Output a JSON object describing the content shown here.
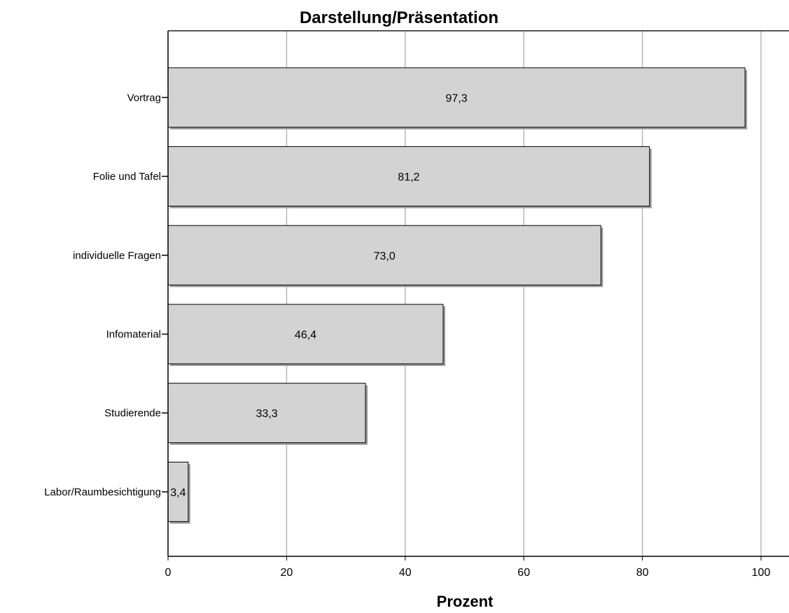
{
  "colors": {
    "bar_fill": "#d3d3d3",
    "bar_stroke": "#000000",
    "grid": "#b8b8b8",
    "axis": "#000000",
    "text": "#000000"
  },
  "chart_data": {
    "type": "bar",
    "orientation": "horizontal",
    "title": "Darstellung/Präsentation",
    "xlabel": "Prozent",
    "ylabel": "",
    "xlim": [
      0,
      100
    ],
    "x_ticks": [
      0,
      20,
      40,
      60,
      80,
      100
    ],
    "categories": [
      "Vortrag",
      "Folie und Tafel",
      "individuelle Fragen",
      "Infomaterial",
      "Studierende",
      "Labor/Raumbesichtigung"
    ],
    "values": [
      97.3,
      81.2,
      73.0,
      46.4,
      33.3,
      3.4
    ],
    "data_labels": [
      "97,3",
      "81,2",
      "73,0",
      "46,4",
      "33,3",
      "3,4"
    ],
    "grid": true,
    "legend": "none"
  }
}
